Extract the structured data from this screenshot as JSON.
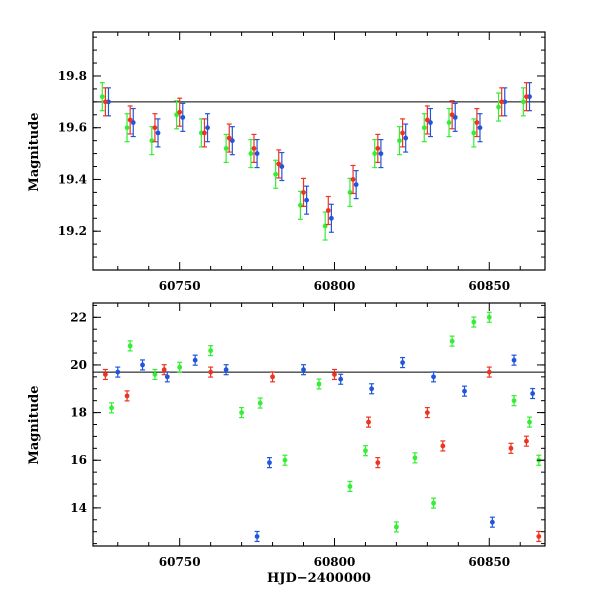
{
  "colors": {
    "green": "#33ee33",
    "blue": "#2255dd",
    "red": "#ee3322",
    "axis": "#000000"
  },
  "chart_data": [
    {
      "type": "scatter",
      "panel": "top",
      "title": "",
      "xlabel": "",
      "ylabel": "Magnitude",
      "xlim": [
        60722,
        60868
      ],
      "ylim": [
        19.97,
        19.05
      ],
      "y_inverted": true,
      "xticks": [
        60750,
        60800,
        60850
      ],
      "xtick_labels": [
        "60750",
        "60800",
        "60850"
      ],
      "yticks": [
        19.2,
        19.4,
        19.6,
        19.8
      ],
      "ytick_labels": [
        "19.2",
        "19.4",
        "19.6",
        "19.8"
      ],
      "reference_line_y": 19.7,
      "error_bars": true,
      "grid": false,
      "series": [
        {
          "color_key": "green",
          "x": [
            60725,
            60733,
            60741,
            60749,
            60757,
            60765,
            60773,
            60781,
            60789,
            60797,
            60805,
            60813,
            60821,
            60829,
            60837,
            60845,
            60853,
            60861
          ],
          "y": [
            19.72,
            19.6,
            19.55,
            19.65,
            19.58,
            19.52,
            19.5,
            19.42,
            19.3,
            19.22,
            19.35,
            19.5,
            19.55,
            19.6,
            19.62,
            19.58,
            19.68,
            19.7
          ]
        },
        {
          "color_key": "blue",
          "x": [
            60727,
            60735,
            60743,
            60751,
            60759,
            60767,
            60775,
            60783,
            60791,
            60799,
            60807,
            60815,
            60823,
            60831,
            60839,
            60847,
            60855,
            60863
          ],
          "y": [
            19.7,
            19.62,
            19.58,
            19.64,
            19.6,
            19.55,
            19.5,
            19.45,
            19.32,
            19.25,
            19.38,
            19.5,
            19.56,
            19.62,
            19.64,
            19.6,
            19.7,
            19.72
          ]
        },
        {
          "color_key": "red",
          "x": [
            60726,
            60734,
            60742,
            60750,
            60758,
            60766,
            60774,
            60782,
            60790,
            60798,
            60806,
            60814,
            60822,
            60830,
            60838,
            60846,
            60854,
            60862
          ],
          "y": [
            19.7,
            19.63,
            19.6,
            19.66,
            19.58,
            19.56,
            19.52,
            19.46,
            19.35,
            19.28,
            19.4,
            19.52,
            19.58,
            19.63,
            19.65,
            19.62,
            19.7,
            19.72
          ]
        }
      ]
    },
    {
      "type": "scatter",
      "panel": "bottom",
      "title": "",
      "xlabel": "HJD−2400000",
      "ylabel": "Magnitude",
      "xlim": [
        60722,
        60868
      ],
      "ylim": [
        22.6,
        12.4
      ],
      "y_inverted": true,
      "xticks": [
        60750,
        60800,
        60850
      ],
      "xtick_labels": [
        "60750",
        "60800",
        "60850"
      ],
      "yticks": [
        14,
        16,
        18,
        20,
        22
      ],
      "ytick_labels": [
        "14",
        "16",
        "18",
        "20",
        "22"
      ],
      "reference_line_y": 19.7,
      "error_bars": true,
      "grid": false,
      "series": [
        {
          "color_key": "green",
          "x": [
            60728,
            60734,
            60742,
            60750,
            60760,
            60770,
            60776,
            60784,
            60795,
            60805,
            60810,
            60820,
            60826,
            60832,
            60838,
            60845,
            60850,
            60858,
            60863,
            60866
          ],
          "y": [
            18.2,
            20.8,
            19.6,
            19.9,
            20.6,
            18.0,
            18.4,
            16.0,
            19.2,
            14.9,
            16.4,
            13.2,
            16.1,
            14.2,
            21.0,
            21.8,
            22.0,
            18.5,
            17.6,
            16.0
          ]
        },
        {
          "color_key": "blue",
          "x": [
            60730,
            60738,
            60746,
            60755,
            60765,
            60775,
            60779,
            60790,
            60802,
            60812,
            60822,
            60832,
            60842,
            60851,
            60858,
            60864
          ],
          "y": [
            19.7,
            20.0,
            19.5,
            20.2,
            19.8,
            12.8,
            15.9,
            19.8,
            19.4,
            19.0,
            20.1,
            19.5,
            18.9,
            13.4,
            20.2,
            18.8
          ]
        },
        {
          "color_key": "red",
          "x": [
            60726,
            60733,
            60745,
            60760,
            60780,
            60800,
            60811,
            60814,
            60830,
            60835,
            60850,
            60857,
            60862,
            60866
          ],
          "y": [
            19.6,
            18.7,
            19.8,
            19.7,
            19.5,
            19.6,
            17.6,
            15.9,
            18.0,
            16.6,
            19.7,
            16.5,
            16.8,
            12.8
          ]
        }
      ]
    }
  ]
}
